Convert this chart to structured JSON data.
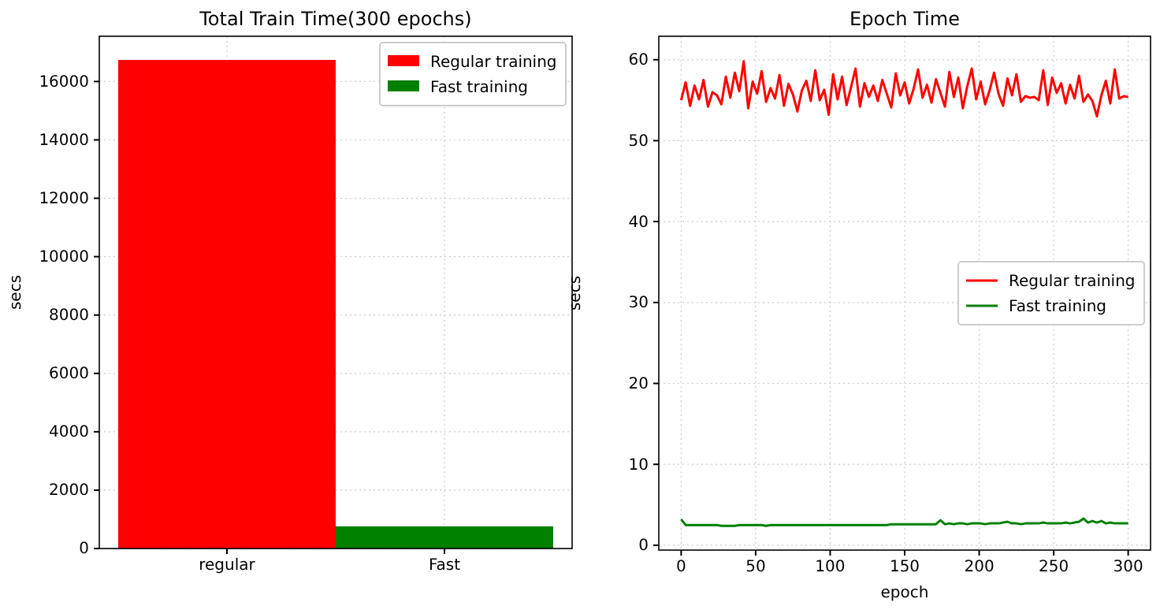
{
  "chart_data": [
    {
      "type": "bar",
      "title": "Total Train Time(300 epochs)",
      "ylabel": "secs",
      "categories": [
        "regular",
        "Fast"
      ],
      "ylim": [
        0,
        17550
      ],
      "yticks": [
        0,
        2000,
        4000,
        6000,
        8000,
        10000,
        12000,
        14000,
        16000
      ],
      "grid": true,
      "legend": "top right",
      "series": [
        {
          "name": "Regular training",
          "color": "#ff0000",
          "values": [
            16740,
            null
          ]
        },
        {
          "name": "Fast training",
          "color": "#008000",
          "values": [
            null,
            760
          ]
        }
      ]
    },
    {
      "type": "line",
      "title": "Epoch Time",
      "xlabel": "epoch",
      "ylabel": "secs",
      "xlim": [
        -15,
        315
      ],
      "xticks": [
        0,
        50,
        100,
        150,
        200,
        250,
        300
      ],
      "ylim": [
        -0.6,
        62.9
      ],
      "yticks": [
        0,
        10,
        20,
        30,
        40,
        50,
        60
      ],
      "grid": true,
      "legend": "right",
      "x": [
        0,
        3,
        6,
        9,
        12,
        15,
        18,
        21,
        24,
        27,
        30,
        33,
        36,
        39,
        42,
        45,
        48,
        51,
        54,
        57,
        60,
        63,
        66,
        69,
        72,
        75,
        78,
        81,
        84,
        87,
        90,
        93,
        96,
        99,
        102,
        105,
        108,
        111,
        114,
        117,
        120,
        123,
        126,
        129,
        132,
        135,
        138,
        141,
        144,
        147,
        150,
        153,
        156,
        159,
        162,
        165,
        168,
        171,
        174,
        177,
        180,
        183,
        186,
        189,
        192,
        195,
        198,
        201,
        204,
        207,
        210,
        213,
        216,
        219,
        222,
        225,
        228,
        231,
        234,
        237,
        240,
        243,
        246,
        249,
        252,
        255,
        258,
        261,
        264,
        267,
        270,
        273,
        276,
        279,
        282,
        285,
        288,
        291,
        294,
        297,
        300
      ],
      "series": [
        {
          "name": "Regular training",
          "color": "#ff0000",
          "values": [
            55.0,
            57.2,
            54.3,
            56.8,
            55.1,
            57.5,
            54.2,
            56.0,
            55.6,
            54.5,
            57.9,
            55.3,
            58.4,
            56.1,
            59.8,
            54.0,
            57.3,
            55.8,
            58.6,
            54.8,
            56.5,
            55.2,
            58.1,
            54.3,
            57.0,
            55.7,
            53.6,
            56.2,
            57.4,
            54.9,
            58.7,
            55.0,
            56.3,
            53.2,
            58.2,
            55.1,
            57.9,
            54.4,
            56.6,
            58.9,
            54.2,
            57.1,
            55.4,
            56.8,
            54.9,
            57.5,
            55.8,
            54.1,
            58.3,
            55.6,
            57.2,
            54.6,
            56.4,
            58.8,
            55.3,
            56.9,
            54.7,
            57.6,
            55.9,
            54.2,
            58.5,
            55.4,
            57.8,
            54.0,
            56.7,
            58.9,
            55.1,
            57.3,
            54.5,
            56.2,
            58.4,
            55.8,
            54.3,
            57.7,
            55.6,
            58.2,
            54.8,
            55.5,
            55.3,
            55.4,
            55.0,
            58.7,
            54.4,
            57.8,
            55.9,
            57.1,
            54.6,
            56.9,
            55.2,
            58.0,
            54.8,
            55.7,
            54.9,
            53.0,
            55.6,
            57.4,
            54.6,
            58.8,
            55.2,
            55.5,
            55.4
          ]
        },
        {
          "name": "Fast training",
          "color": "#008000",
          "values": [
            3.2,
            2.5,
            2.5,
            2.5,
            2.5,
            2.5,
            2.5,
            2.5,
            2.5,
            2.4,
            2.4,
            2.4,
            2.4,
            2.5,
            2.5,
            2.5,
            2.5,
            2.5,
            2.5,
            2.4,
            2.5,
            2.5,
            2.5,
            2.5,
            2.5,
            2.5,
            2.5,
            2.5,
            2.5,
            2.5,
            2.5,
            2.5,
            2.5,
            2.5,
            2.5,
            2.5,
            2.5,
            2.5,
            2.5,
            2.5,
            2.5,
            2.5,
            2.5,
            2.5,
            2.5,
            2.5,
            2.5,
            2.6,
            2.6,
            2.6,
            2.6,
            2.6,
            2.6,
            2.6,
            2.6,
            2.6,
            2.6,
            2.6,
            3.1,
            2.6,
            2.7,
            2.6,
            2.7,
            2.7,
            2.6,
            2.7,
            2.7,
            2.7,
            2.6,
            2.7,
            2.7,
            2.7,
            2.8,
            2.9,
            2.7,
            2.7,
            2.6,
            2.7,
            2.7,
            2.7,
            2.7,
            2.8,
            2.7,
            2.7,
            2.7,
            2.7,
            2.8,
            2.7,
            2.8,
            2.9,
            3.3,
            2.8,
            3.0,
            2.8,
            3.0,
            2.7,
            2.8,
            2.7,
            2.7,
            2.7,
            2.7
          ]
        }
      ]
    }
  ]
}
